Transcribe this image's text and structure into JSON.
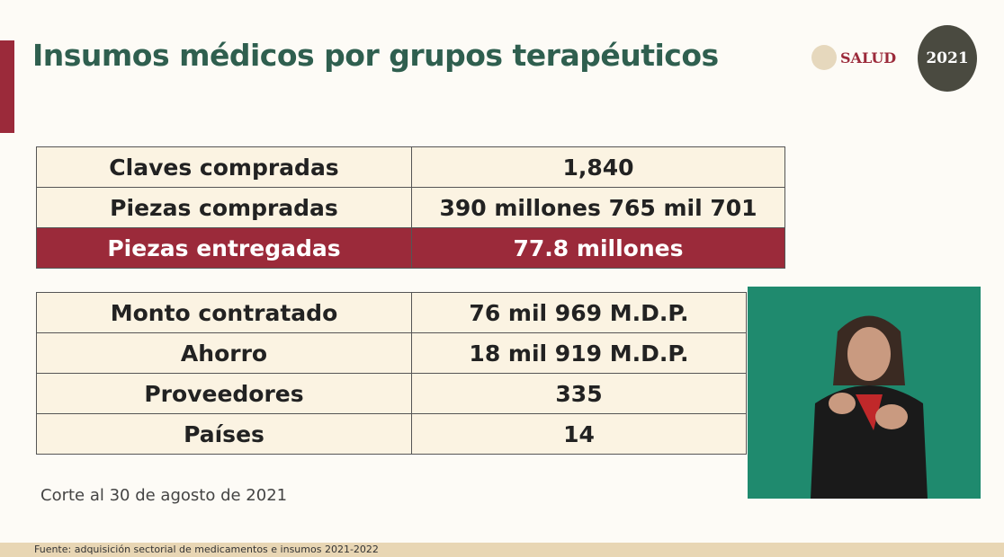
{
  "header": {
    "title": "Insumos médicos por grupos terapéuticos",
    "logo_salud": "SALUD",
    "logo_2021": "2021"
  },
  "table1": [
    [
      "Claves compradas",
      "1,840"
    ],
    [
      "Piezas compradas",
      "390 millones 765 mil 701"
    ],
    [
      "Piezas entregadas",
      "77.8 millones"
    ]
  ],
  "table2": [
    [
      "Monto contratado",
      "76 mil 969 M.D.P."
    ],
    [
      "Ahorro",
      "18 mil 919 M.D.P."
    ],
    [
      "Proveedores",
      "335"
    ],
    [
      "Países",
      "14"
    ]
  ],
  "note": "Corte al 30 de agosto de 2021",
  "footer": "Fuente:  adquisición sectorial de medicamentos e insumos 2021-2022",
  "colors": {
    "accent": "#9b2a3a",
    "title": "#2f5f4f",
    "video_bg": "#1f8a6e"
  }
}
